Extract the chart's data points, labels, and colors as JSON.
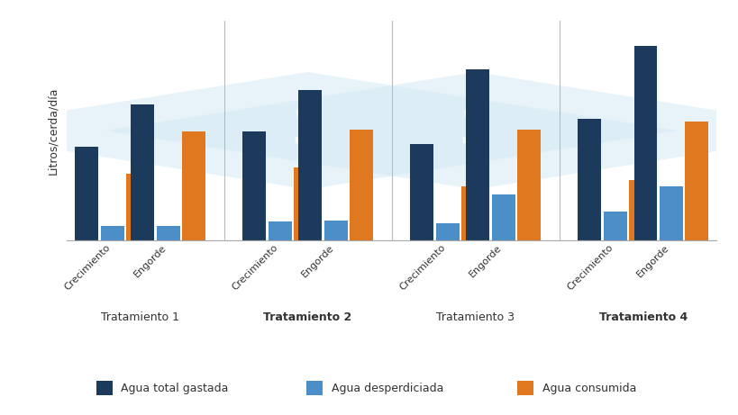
{
  "treatments": [
    "Tratamiento 1",
    "Tratamiento 2",
    "Tratamiento 3",
    "Tratamiento 4"
  ],
  "treatment_bold": [
    false,
    true,
    false,
    true
  ],
  "subcategories": [
    "Crecimiento",
    "Engorde"
  ],
  "dark_blue": "#1b3a5c",
  "light_blue": "#4b8ec8",
  "orange": "#e07820",
  "ylabel": "Litros/cerda/día",
  "legend_labels": [
    "Agua total gastada",
    "Agua desperdiciada",
    "Agua consumida"
  ],
  "background_color": "#ffffff",
  "data": {
    "Tratamiento 1": {
      "Crecimiento": {
        "total": 4.5,
        "desperdiciada": 0.7,
        "consumida": 3.2
      },
      "Engorde": {
        "total": 6.5,
        "desperdiciada": 0.7,
        "consumida": 5.2
      }
    },
    "Tratamiento 2": {
      "Crecimiento": {
        "total": 5.2,
        "desperdiciada": 0.9,
        "consumida": 3.5
      },
      "Engorde": {
        "total": 7.2,
        "desperdiciada": 0.95,
        "consumida": 5.3
      }
    },
    "Tratamiento 3": {
      "Crecimiento": {
        "total": 4.6,
        "desperdiciada": 0.85,
        "consumida": 2.6
      },
      "Engorde": {
        "total": 8.2,
        "desperdiciada": 2.2,
        "consumida": 5.3
      }
    },
    "Tratamiento 4": {
      "Crecimiento": {
        "total": 5.8,
        "desperdiciada": 1.4,
        "consumida": 2.9
      },
      "Engorde": {
        "total": 9.3,
        "desperdiciada": 2.6,
        "consumida": 5.7
      }
    }
  },
  "bar_width": 0.25,
  "ylim": [
    0,
    10.5
  ],
  "watermark_color": "#d2e8f5",
  "divider_color": "#bbbbbb",
  "watermark_treatments": [
    1,
    2
  ]
}
